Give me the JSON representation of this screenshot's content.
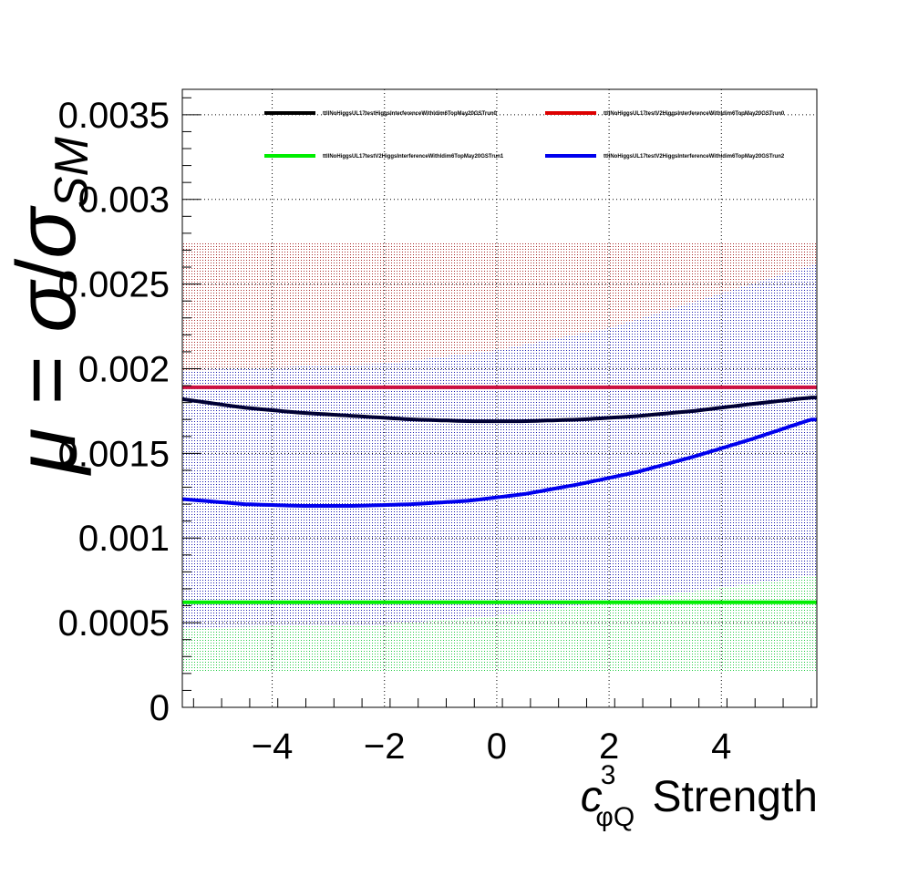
{
  "chart_data": {
    "type": "line",
    "xlabel": {
      "main": "c",
      "sup": "3",
      "sub": "φQ",
      "suffix": " Strength"
    },
    "ylabel": {
      "mu": "μ",
      "eq": " = ",
      "sigma": "σ",
      "slash": "/",
      "sigma2": "σ",
      "sub": "SM"
    },
    "xlim": [
      -5.6,
      5.7
    ],
    "ylim": [
      0,
      0.00365
    ],
    "xticks": [
      -4,
      -2,
      0,
      2,
      4
    ],
    "xtick_labels": [
      "−4",
      "−2",
      "0",
      "2",
      "4"
    ],
    "yticks": [
      0,
      0.0005,
      0.001,
      0.0015,
      0.002,
      0.0025,
      0.003,
      0.0035
    ],
    "ytick_labels": [
      "0",
      "0.0005",
      "0.001",
      "0.0015",
      "0.002",
      "0.0025",
      "0.003",
      "0.0035"
    ],
    "grid": true,
    "legend_position": "top",
    "series": [
      {
        "name": "ttllNoHiggsUL17testHiggsInterferenceWithldim6TopMay20GSTrun0",
        "color": "#000033",
        "legend_color": "#000000",
        "x": [
          -5.6,
          -4.5,
          -3.5,
          -2.5,
          -1.5,
          -0.5,
          0.5,
          1.5,
          2.5,
          3.5,
          4.5,
          5.6
        ],
        "y": [
          0.00182,
          0.00177,
          0.00174,
          0.00172,
          0.0017,
          0.00169,
          0.00169,
          0.0017,
          0.00172,
          0.00175,
          0.00179,
          0.00183
        ],
        "band": null
      },
      {
        "name": "ttllNoHiggsUL17testV2HiggsInterferenceWithldim6TopMay20GSTrun0",
        "color": "#cc1040",
        "legend_color": "#dd0000",
        "x": [
          -5.6,
          5.7
        ],
        "y": [
          0.00189,
          0.00189
        ],
        "band": {
          "color": "#b03030",
          "x": [
            -5.6,
            5.7
          ],
          "low": [
            0.00199,
            0.00199
          ],
          "high": [
            0.00275,
            0.00275
          ]
        }
      },
      {
        "name": "ttllNoHiggsUL17testV2HiggsInterferenceWithldim6TopMay20GSTrun1",
        "color": "#00ee00",
        "legend_color": "#00ee00",
        "x": [
          -5.6,
          5.7
        ],
        "y": [
          0.00062,
          0.00062
        ],
        "band": {
          "color": "#00cc33",
          "x": [
            -5.6,
            -2,
            0,
            2,
            5.7
          ],
          "low": [
            0.00021,
            0.00021,
            0.00021,
            0.00021,
            0.00021
          ],
          "high": [
            0.00047,
            0.00049,
            0.00054,
            0.00062,
            0.00078
          ]
        }
      },
      {
        "name": "ttllNoHiggsUL17testV2HiggsInterferenceWithldim6TopMay20GSTrun2",
        "color": "#0000ee",
        "legend_color": "#0000ee",
        "x": [
          -5.6,
          -4.5,
          -3.5,
          -2.5,
          -1.5,
          -0.5,
          0.5,
          1.5,
          2.5,
          3.5,
          4.5,
          5.6
        ],
        "y": [
          0.00123,
          0.0012,
          0.00119,
          0.00119,
          0.0012,
          0.00122,
          0.00126,
          0.00132,
          0.00139,
          0.00148,
          0.00158,
          0.0017
        ],
        "band": {
          "color": "#1010bb",
          "x": [
            -5.6,
            -2,
            0,
            2,
            5.7
          ],
          "low": [
            0.00047,
            0.00049,
            0.00054,
            0.00062,
            0.00078
          ],
          "high": [
            0.00199,
            0.00203,
            0.00211,
            0.00224,
            0.00262
          ]
        }
      }
    ]
  }
}
